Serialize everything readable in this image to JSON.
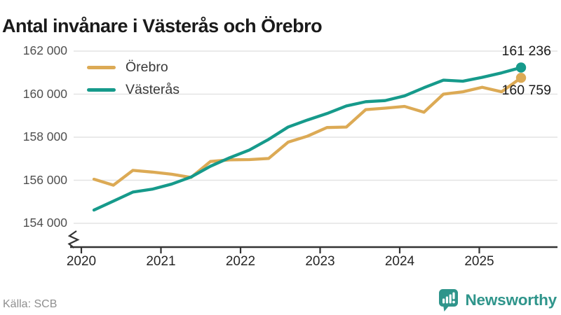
{
  "title": "Antal invånare i Västerås och Örebro",
  "source": "Källa: SCB",
  "branding": {
    "logo_text": "Newsworthy",
    "logo_icon": "speech-bubble-bar-chart",
    "logo_color": "#2f958b"
  },
  "colors": {
    "orebro_line": "#dcaa55",
    "vasteras_line": "#169a8b",
    "gridline": "#e4e4e4",
    "axis": "#333333",
    "title_text": "#1a1a1a",
    "ytick_text": "#4f4f4f",
    "xtick_text": "#262626",
    "source_text": "#8f8f8f"
  },
  "chart_data": {
    "type": "line",
    "title": "Antal invånare i Västerås och Örebro",
    "xlabel": "",
    "ylabel": "",
    "x": [
      "2020 Q1",
      "2020 Q2",
      "2020 Q3",
      "2020 Q4",
      "2021 Q1",
      "2021 Q2",
      "2021 Q3",
      "2021 Q4",
      "2022 Q1",
      "2022 Q2",
      "2022 Q3",
      "2022 Q4",
      "2023 Q1",
      "2023 Q2",
      "2023 Q3",
      "2023 Q4",
      "2024 Q1",
      "2024 Q2",
      "2024 Q3",
      "2024 Q4",
      "2025 Q1",
      "2025 Q2",
      "2025 Q3"
    ],
    "x_axis_tick_years": [
      2020,
      2021,
      2022,
      2023,
      2024,
      2025
    ],
    "y_ticks": [
      {
        "label": "162 000",
        "value": 162000
      },
      {
        "label": "160 000",
        "value": 160000
      },
      {
        "label": "158 000",
        "value": 158000
      },
      {
        "label": "156 000",
        "value": 156000
      },
      {
        "label": "154 000",
        "value": 154000
      }
    ],
    "ylim": [
      154000,
      162000
    ],
    "axis_break": true,
    "grid": "horizontal",
    "legend_position": "top-left",
    "series": [
      {
        "name": "Örebro",
        "color": "#dcaa55",
        "end_label": "160 759",
        "values": [
          156050,
          155770,
          156460,
          156380,
          156280,
          156130,
          156870,
          156950,
          156960,
          157010,
          157770,
          158050,
          158450,
          158470,
          159280,
          159350,
          159430,
          159160,
          160000,
          160110,
          160320,
          160110,
          160759
        ]
      },
      {
        "name": "Västerås",
        "color": "#169a8b",
        "end_label": "161 236",
        "values": [
          154615,
          155030,
          155450,
          155585,
          155820,
          156150,
          156650,
          157050,
          157400,
          157900,
          158470,
          158800,
          159100,
          159450,
          159650,
          159700,
          159920,
          160300,
          160650,
          160600,
          160780,
          160990,
          161236
        ]
      }
    ]
  }
}
